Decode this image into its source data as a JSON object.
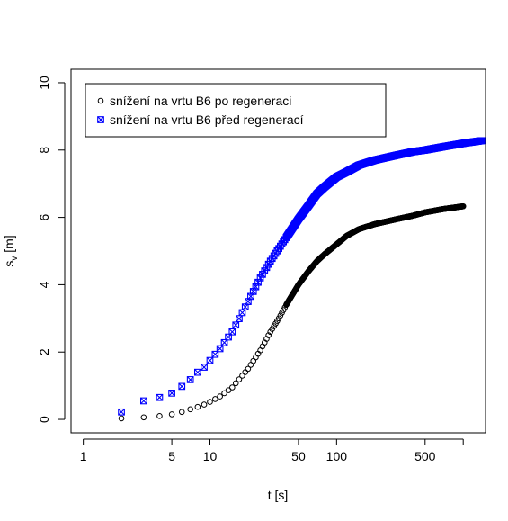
{
  "chart_data": {
    "type": "scatter",
    "xlabel": "t [s]",
    "ylabel": {
      "main": "s",
      "sub": "v",
      "unit": " [m]"
    },
    "x_scale": "log",
    "xlim": [
      0.8,
      1500
    ],
    "ylim": [
      -0.4,
      10.4
    ],
    "x_ticks": [
      1,
      5,
      10,
      50,
      100,
      500,
      1000
    ],
    "x_tick_labels": [
      "1",
      "5",
      "10",
      "50",
      "100",
      "500",
      ""
    ],
    "y_ticks": [
      0,
      2,
      4,
      6,
      8,
      10
    ],
    "y_tick_labels": [
      "0",
      "2",
      "4",
      "6",
      "8",
      "10"
    ],
    "legend_position": "top-left",
    "grid": false,
    "series": [
      {
        "name": "snížení na vrtu B6 po regeneraci",
        "marker": "open-circle",
        "color": "#000000",
        "t_start": 2,
        "t_end": 1000,
        "points": [
          [
            2,
            0.03
          ],
          [
            3,
            0.06
          ],
          [
            4,
            0.1
          ],
          [
            5,
            0.15
          ],
          [
            6,
            0.22
          ],
          [
            7,
            0.3
          ],
          [
            8,
            0.37
          ],
          [
            9,
            0.44
          ],
          [
            10,
            0.52
          ],
          [
            12,
            0.68
          ],
          [
            15,
            0.95
          ],
          [
            20,
            1.5
          ],
          [
            25,
            2.05
          ],
          [
            30,
            2.6
          ],
          [
            35,
            3.0
          ],
          [
            40,
            3.4
          ],
          [
            50,
            4.0
          ],
          [
            60,
            4.4
          ],
          [
            70,
            4.7
          ],
          [
            80,
            4.9
          ],
          [
            100,
            5.2
          ],
          [
            120,
            5.45
          ],
          [
            150,
            5.65
          ],
          [
            200,
            5.8
          ],
          [
            300,
            5.95
          ],
          [
            400,
            6.05
          ],
          [
            500,
            6.15
          ],
          [
            700,
            6.25
          ],
          [
            1000,
            6.33
          ]
        ]
      },
      {
        "name": "snížení na vrtu B6 před regenerací",
        "marker": "boxed-x",
        "color": "#0000ff",
        "t_start": 2,
        "t_end": 1400,
        "points": [
          [
            2,
            0.22
          ],
          [
            3,
            0.55
          ],
          [
            4,
            0.65
          ],
          [
            5,
            0.78
          ],
          [
            6,
            0.98
          ],
          [
            7,
            1.18
          ],
          [
            8,
            1.4
          ],
          [
            9,
            1.55
          ],
          [
            10,
            1.75
          ],
          [
            12,
            2.1
          ],
          [
            15,
            2.6
          ],
          [
            20,
            3.5
          ],
          [
            25,
            4.2
          ],
          [
            30,
            4.7
          ],
          [
            40,
            5.4
          ],
          [
            50,
            5.95
          ],
          [
            60,
            6.35
          ],
          [
            70,
            6.7
          ],
          [
            80,
            6.9
          ],
          [
            100,
            7.2
          ],
          [
            120,
            7.35
          ],
          [
            150,
            7.55
          ],
          [
            200,
            7.7
          ],
          [
            300,
            7.85
          ],
          [
            400,
            7.95
          ],
          [
            500,
            8.0
          ],
          [
            700,
            8.1
          ],
          [
            1000,
            8.2
          ],
          [
            1400,
            8.28
          ]
        ]
      }
    ]
  }
}
